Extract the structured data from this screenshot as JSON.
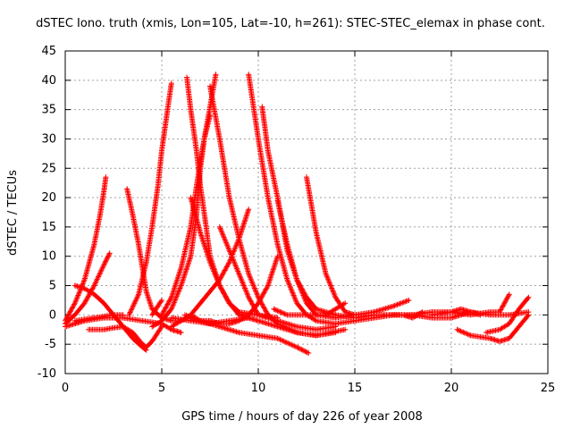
{
  "chart_data": {
    "type": "scatter",
    "title": "dSTEC Iono. truth (xmis, Lon=105, Lat=-10, h=261): STEC-STEC_elemax in phase cont.",
    "xlabel": "GPS time / hours of day 226 of year 2008",
    "ylabel": "dSTEC  / TECUs",
    "xlim": [
      0,
      25
    ],
    "ylim": [
      -10,
      45
    ],
    "x_ticks": [
      0,
      5,
      10,
      15,
      20,
      25
    ],
    "y_ticks": [
      -10,
      -5,
      0,
      5,
      10,
      15,
      20,
      25,
      30,
      35,
      40,
      45
    ],
    "grid": true,
    "marker": "plus",
    "color": "#ff0000",
    "series": [
      {
        "points": [
          [
            0,
            -1
          ],
          [
            0.5,
            2
          ],
          [
            1,
            6
          ],
          [
            1.5,
            12
          ],
          [
            1.8,
            17
          ],
          [
            2.0,
            21
          ],
          [
            2.1,
            23.5
          ]
        ]
      },
      {
        "points": [
          [
            0,
            -1.5
          ],
          [
            0.5,
            0
          ],
          [
            1,
            2
          ],
          [
            1.5,
            5
          ],
          [
            2,
            8.5
          ],
          [
            2.3,
            10.5
          ]
        ]
      },
      {
        "points": [
          [
            0.5,
            5
          ],
          [
            1,
            4.5
          ],
          [
            1.5,
            3.5
          ],
          [
            2,
            2
          ],
          [
            2.5,
            0
          ],
          [
            3,
            -2
          ],
          [
            3.5,
            -4
          ],
          [
            4,
            -5.5
          ],
          [
            4.2,
            -6
          ]
        ]
      },
      {
        "points": [
          [
            0,
            -2
          ],
          [
            1,
            -1
          ],
          [
            2,
            -0.5
          ],
          [
            3,
            -0.5
          ],
          [
            4,
            -1
          ],
          [
            5,
            -1.5
          ],
          [
            5.5,
            -2.5
          ],
          [
            6,
            -3
          ]
        ]
      },
      {
        "points": [
          [
            0.5,
            -1
          ],
          [
            1.5,
            -0.5
          ],
          [
            2.5,
            0
          ],
          [
            3,
            0
          ]
        ]
      },
      {
        "points": [
          [
            1.2,
            -2.5
          ],
          [
            2,
            -2.5
          ],
          [
            2.5,
            -2.2
          ],
          [
            3,
            -2
          ],
          [
            3.5,
            -3
          ],
          [
            4,
            -5
          ],
          [
            4.2,
            -5.5
          ],
          [
            4.5,
            -4.5
          ],
          [
            5,
            -2
          ]
        ]
      },
      {
        "points": [
          [
            3.2,
            21.5
          ],
          [
            3.5,
            17
          ],
          [
            3.8,
            12
          ],
          [
            4,
            8
          ],
          [
            4.2,
            4
          ],
          [
            4.5,
            1
          ],
          [
            5,
            -0.5
          ],
          [
            5.5,
            -1
          ],
          [
            6,
            -1
          ],
          [
            6.3,
            -0.5
          ]
        ]
      },
      {
        "points": [
          [
            3.3,
            0
          ],
          [
            3.8,
            3.5
          ],
          [
            4.2,
            9
          ],
          [
            4.5,
            15
          ],
          [
            4.8,
            22
          ],
          [
            5,
            28
          ],
          [
            5.3,
            35
          ],
          [
            5.5,
            39.5
          ]
        ]
      },
      {
        "points": [
          [
            4.5,
            0
          ],
          [
            5,
            2.5
          ]
        ]
      },
      {
        "points": [
          [
            5,
            0
          ],
          [
            5.5,
            3
          ],
          [
            6,
            8
          ],
          [
            6.5,
            15
          ],
          [
            6.8,
            22
          ],
          [
            7.2,
            30
          ],
          [
            7.5,
            35.5
          ],
          [
            7.8,
            41
          ]
        ]
      },
      {
        "points": [
          [
            4.5,
            -2
          ],
          [
            5,
            -1
          ],
          [
            5.5,
            1
          ],
          [
            6,
            5
          ],
          [
            6.5,
            10
          ],
          [
            6.8,
            17
          ],
          [
            7,
            25
          ],
          [
            7.2,
            30
          ],
          [
            7.5,
            34
          ]
        ]
      },
      {
        "points": [
          [
            6.3,
            40.5
          ],
          [
            6.5,
            35
          ],
          [
            6.8,
            28
          ],
          [
            7,
            22
          ],
          [
            7.3,
            15
          ],
          [
            7.5,
            10
          ],
          [
            8,
            5
          ],
          [
            8.5,
            2
          ],
          [
            9,
            0.5
          ],
          [
            10,
            0
          ],
          [
            11,
            -0.5
          ]
        ]
      },
      {
        "points": [
          [
            6.5,
            20
          ],
          [
            7,
            14
          ],
          [
            7.5,
            9
          ],
          [
            8,
            5
          ],
          [
            8.5,
            2
          ],
          [
            9,
            0
          ],
          [
            9.5,
            -0.5
          ],
          [
            10,
            -1
          ],
          [
            11,
            -2
          ],
          [
            12,
            -3
          ],
          [
            13,
            -3.5
          ],
          [
            14.5,
            -2.5
          ]
        ]
      },
      {
        "points": [
          [
            7.5,
            39
          ],
          [
            8,
            30
          ],
          [
            8.5,
            20
          ],
          [
            9,
            13
          ],
          [
            9.5,
            7
          ],
          [
            10,
            3
          ],
          [
            10.5,
            0
          ],
          [
            11,
            -1.5
          ],
          [
            12,
            -3
          ],
          [
            13,
            -3.5
          ],
          [
            14,
            -3
          ]
        ]
      },
      {
        "points": [
          [
            8,
            15
          ],
          [
            8.5,
            11
          ],
          [
            9,
            7
          ],
          [
            9.5,
            3
          ],
          [
            10,
            0
          ],
          [
            11,
            -1
          ],
          [
            12,
            -2
          ],
          [
            13,
            -2.5
          ],
          [
            14,
            -2
          ]
        ]
      },
      {
        "points": [
          [
            9.5,
            41
          ],
          [
            10,
            30
          ],
          [
            10.5,
            20
          ],
          [
            11,
            12
          ],
          [
            11.5,
            6
          ],
          [
            12,
            2
          ],
          [
            12.5,
            0
          ],
          [
            13,
            -1
          ],
          [
            14,
            -1.5
          ],
          [
            15,
            -1
          ]
        ]
      },
      {
        "points": [
          [
            10.2,
            35.5
          ],
          [
            10.5,
            28
          ],
          [
            11,
            20
          ],
          [
            11.5,
            11
          ],
          [
            12,
            6
          ],
          [
            12.5,
            3
          ],
          [
            13,
            1
          ],
          [
            14,
            0
          ]
        ]
      },
      {
        "points": [
          [
            11,
            19.5
          ],
          [
            11.5,
            12
          ],
          [
            12,
            6
          ],
          [
            12.5,
            2
          ],
          [
            13,
            0
          ],
          [
            14,
            -0.5
          ],
          [
            15,
            0
          ],
          [
            16,
            0.5
          ],
          [
            17,
            1.5
          ],
          [
            17.8,
            2.5
          ]
        ]
      },
      {
        "points": [
          [
            12.5,
            23.5
          ],
          [
            13,
            14
          ],
          [
            13.5,
            7
          ],
          [
            14,
            3
          ],
          [
            14.5,
            0.5
          ],
          [
            15,
            0
          ]
        ]
      },
      {
        "points": [
          [
            5.5,
            -2
          ],
          [
            6,
            -1
          ],
          [
            6.5,
            0
          ],
          [
            7,
            2
          ],
          [
            7.5,
            4
          ],
          [
            8,
            6
          ],
          [
            8.5,
            9
          ],
          [
            9,
            13
          ],
          [
            9.5,
            18
          ]
        ]
      },
      {
        "points": [
          [
            6.5,
            0
          ],
          [
            7,
            -1
          ],
          [
            7.5,
            -1
          ],
          [
            8,
            -1.5
          ],
          [
            8.5,
            -1.5
          ],
          [
            9,
            -1
          ],
          [
            9.5,
            0
          ],
          [
            10,
            2
          ],
          [
            10.5,
            5
          ],
          [
            11,
            10
          ]
        ]
      },
      {
        "points": [
          [
            6.2,
            0
          ],
          [
            7,
            -1
          ],
          [
            8,
            -2
          ],
          [
            9,
            -3
          ],
          [
            10,
            -3.5
          ],
          [
            11,
            -4
          ],
          [
            12,
            -5.5
          ],
          [
            12.6,
            -6.5
          ]
        ]
      },
      {
        "points": [
          [
            5.5,
            -0.5
          ],
          [
            6.5,
            -1
          ],
          [
            7.5,
            -1.5
          ],
          [
            8.5,
            -1
          ],
          [
            9.5,
            -0.5
          ]
        ]
      },
      {
        "points": [
          [
            10.8,
            1
          ],
          [
            11.5,
            0
          ],
          [
            12.5,
            0
          ],
          [
            13.5,
            0
          ],
          [
            14.5,
            2
          ]
        ]
      },
      {
        "points": [
          [
            14,
            0
          ],
          [
            15,
            -0.5
          ],
          [
            16,
            0
          ],
          [
            17,
            0
          ],
          [
            18,
            0
          ],
          [
            19,
            -0.5
          ],
          [
            20,
            -0.5
          ],
          [
            21,
            0.5
          ],
          [
            22,
            0
          ],
          [
            23,
            0
          ],
          [
            24,
            0.5
          ]
        ]
      },
      {
        "points": [
          [
            15,
            -1
          ],
          [
            16,
            -0.5
          ],
          [
            17,
            0
          ],
          [
            18,
            0
          ],
          [
            19,
            0.5
          ],
          [
            20,
            0.5
          ],
          [
            21,
            0
          ],
          [
            22,
            0.5
          ],
          [
            22.5,
            0.5
          ],
          [
            23,
            3.5
          ]
        ]
      },
      {
        "points": [
          [
            16.5,
            0
          ],
          [
            17.5,
            0
          ],
          [
            18,
            -0.5
          ],
          [
            18.5,
            0.5
          ]
        ]
      },
      {
        "points": [
          [
            19,
            0
          ],
          [
            20,
            0.5
          ],
          [
            20.5,
            1
          ],
          [
            21,
            0.5
          ],
          [
            21.5,
            0
          ]
        ]
      },
      {
        "points": [
          [
            20.3,
            -2.5
          ],
          [
            21,
            -3.5
          ],
          [
            22,
            -4
          ],
          [
            22.5,
            -4.5
          ],
          [
            23,
            -4
          ],
          [
            23.5,
            -2
          ],
          [
            24,
            0
          ]
        ]
      },
      {
        "points": [
          [
            21.8,
            -3
          ],
          [
            22.5,
            -2.5
          ],
          [
            23,
            -1.5
          ],
          [
            23.5,
            1
          ],
          [
            24,
            3
          ]
        ]
      }
    ]
  }
}
